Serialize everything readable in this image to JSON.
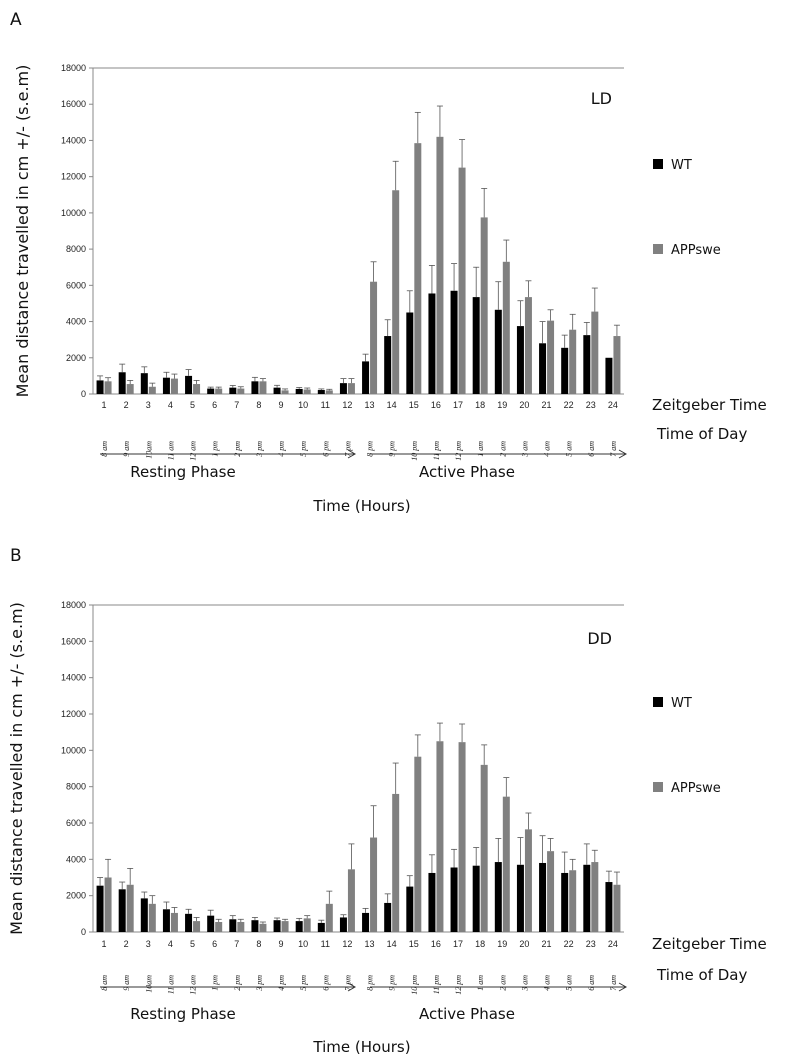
{
  "chart_data": [
    {
      "type": "bar",
      "panel_label": "A",
      "condition_label": "LD",
      "ylabel": "Mean distance travelled in cm +/- (s.e.m)",
      "ylim": [
        0,
        18000
      ],
      "yticks": [
        0,
        2000,
        4000,
        6000,
        8000,
        10000,
        12000,
        14000,
        16000,
        18000
      ],
      "categories": [
        "1",
        "2",
        "3",
        "4",
        "5",
        "6",
        "7",
        "8",
        "9",
        "10",
        "11",
        "12",
        "13",
        "14",
        "15",
        "16",
        "17",
        "18",
        "19",
        "20",
        "21",
        "22",
        "23",
        "24"
      ],
      "time_of_day": [
        "8 am",
        "9 am",
        "10am",
        "11 am",
        "12 am",
        "1 pm",
        "2 pm",
        "3 pm",
        "4 pm",
        "5 pm",
        "6 pm",
        "7 pm",
        "8 pm",
        "9 pm",
        "10 pm",
        "11 pm",
        "12 pm",
        "1 am",
        "2 am",
        "3 am",
        "4 am",
        "5 am",
        "6 am",
        "7 am"
      ],
      "x_row_label": "Zeitgeber Time",
      "tod_row_label": "Time of Day",
      "phase_left": "Resting Phase",
      "phase_right": "Active Phase",
      "xlabel": "Time (Hours)",
      "legend_placement": "right",
      "series": [
        {
          "name": "WT",
          "color": "#000000",
          "values": [
            750,
            1200,
            1150,
            900,
            1000,
            300,
            350,
            700,
            350,
            280,
            220,
            600,
            1800,
            3200,
            4500,
            5550,
            5700,
            5350,
            4650,
            3750,
            2800,
            2550,
            3250,
            2000
          ],
          "errors": [
            250,
            450,
            350,
            300,
            350,
            80,
            120,
            220,
            130,
            80,
            60,
            250,
            400,
            900,
            1200,
            1550,
            1500,
            1650,
            1550,
            1400,
            1200,
            700,
            700,
            0
          ]
        },
        {
          "name": "APPswe",
          "color": "#808080",
          "values": [
            700,
            550,
            400,
            850,
            550,
            300,
            300,
            700,
            200,
            250,
            200,
            600,
            6200,
            11250,
            13850,
            14200,
            12500,
            9750,
            7300,
            5350,
            4050,
            3550,
            4550,
            3200
          ],
          "errors": [
            200,
            200,
            200,
            250,
            200,
            80,
            100,
            150,
            80,
            80,
            60,
            250,
            1100,
            1600,
            1700,
            1700,
            1550,
            1600,
            1200,
            900,
            600,
            850,
            1300,
            600
          ]
        }
      ]
    },
    {
      "type": "bar",
      "panel_label": "B",
      "condition_label": "DD",
      "ylabel": "Mean distance travelled in cm +/- (s.e.m)",
      "ylim": [
        0,
        18000
      ],
      "yticks": [
        0,
        2000,
        4000,
        6000,
        8000,
        10000,
        12000,
        14000,
        16000,
        18000
      ],
      "categories": [
        "1",
        "2",
        "3",
        "4",
        "5",
        "6",
        "7",
        "8",
        "9",
        "10",
        "11",
        "12",
        "13",
        "14",
        "15",
        "16",
        "17",
        "18",
        "19",
        "20",
        "21",
        "22",
        "23",
        "24"
      ],
      "time_of_day": [
        "8 am",
        "9 am",
        "10am",
        "11 am",
        "12 am",
        "1 pm",
        "2 pm",
        "3 pm",
        "4 pm",
        "5 pm",
        "6 pm",
        "7 pm",
        "8 pm",
        "9 pm",
        "10 pm",
        "11 pm",
        "12 pm",
        "1 am",
        "2 am",
        "3 am",
        "4 am",
        "5 am",
        "6 am",
        "7 am"
      ],
      "x_row_label": "Zeitgeber Time",
      "tod_row_label": "Time of Day",
      "phase_left": "Resting Phase",
      "phase_right": "Active Phase",
      "xlabel": "Time (Hours)",
      "legend_placement": "right",
      "series": [
        {
          "name": "WT",
          "color": "#000000",
          "values": [
            2550,
            2350,
            1850,
            1250,
            1000,
            900,
            700,
            650,
            650,
            600,
            500,
            800,
            1050,
            1600,
            2500,
            3250,
            3550,
            3650,
            3850,
            3700,
            3800,
            3250,
            3700,
            2750
          ],
          "errors": [
            450,
            400,
            350,
            400,
            250,
            300,
            200,
            150,
            120,
            150,
            150,
            150,
            250,
            500,
            600,
            1000,
            1000,
            1000,
            1300,
            1500,
            1500,
            1150,
            1150,
            600
          ]
        },
        {
          "name": "APPswe",
          "color": "#808080",
          "values": [
            3000,
            2600,
            1550,
            1050,
            600,
            550,
            550,
            450,
            600,
            750,
            1550,
            3450,
            5200,
            7600,
            9650,
            10500,
            10450,
            9200,
            7450,
            5650,
            4450,
            3400,
            3850,
            2600
          ],
          "errors": [
            1000,
            900,
            450,
            300,
            200,
            150,
            150,
            100,
            100,
            150,
            700,
            1400,
            1750,
            1700,
            1200,
            1000,
            1000,
            1100,
            1050,
            900,
            700,
            600,
            650,
            700
          ]
        }
      ]
    }
  ]
}
